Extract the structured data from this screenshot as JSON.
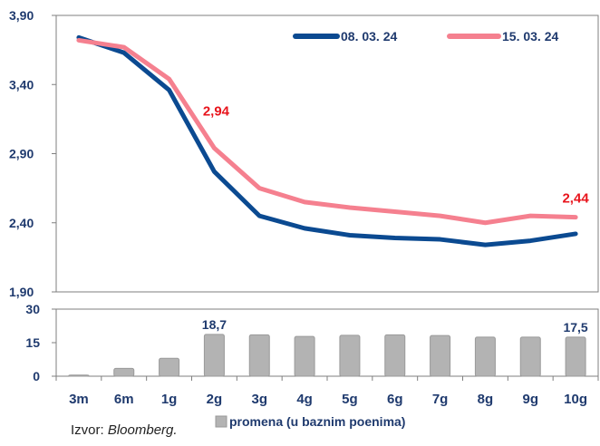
{
  "colors": {
    "series1": "#0b4a91",
    "series2": "#f5808f",
    "bars": "#b3b3b3",
    "bar_edge": "#9a9a9a",
    "axis_text": "#1f3a6e",
    "annotation": "#e8141c",
    "frame": "#7f7f7f"
  },
  "chart_data": [
    {
      "type": "line",
      "categories": [
        "3m",
        "6m",
        "1g",
        "2g",
        "3g",
        "4g",
        "5g",
        "6g",
        "7g",
        "8g",
        "9g",
        "10g"
      ],
      "series": [
        {
          "name": "08. 03. 24",
          "values": [
            3.74,
            3.63,
            3.36,
            2.77,
            2.45,
            2.36,
            2.31,
            2.29,
            2.28,
            2.24,
            2.27,
            2.32
          ],
          "color": "#0b4a91"
        },
        {
          "name": "15. 03. 24",
          "values": [
            3.72,
            3.67,
            3.44,
            2.94,
            2.65,
            2.55,
            2.51,
            2.48,
            2.45,
            2.4,
            2.45,
            2.44
          ],
          "color": "#f5808f"
        }
      ],
      "ylim": [
        1.9,
        3.9
      ],
      "yticks": [
        1.9,
        2.4,
        2.9,
        3.4,
        3.9
      ],
      "ytick_labels": [
        "1,90",
        "2,40",
        "2,90",
        "3,40",
        "3,90"
      ],
      "annotations": [
        {
          "category": "2g",
          "series": "15. 03. 24",
          "text": "2,94"
        },
        {
          "category": "10g",
          "series": "15. 03. 24",
          "text": "2,44"
        }
      ],
      "grid": false,
      "legend": "top-right"
    },
    {
      "type": "bar",
      "categories": [
        "3m",
        "6m",
        "1g",
        "2g",
        "3g",
        "4g",
        "5g",
        "6g",
        "7g",
        "8g",
        "9g",
        "10g"
      ],
      "series": [
        {
          "name": "promena (u baznim poenima)",
          "values": [
            0.5,
            3.5,
            8.0,
            18.7,
            18.5,
            17.8,
            18.3,
            18.5,
            18.2,
            17.5,
            17.5,
            17.5
          ]
        }
      ],
      "ylim": [
        0,
        30
      ],
      "yticks": [
        0,
        15,
        30
      ],
      "ytick_labels": [
        "0",
        "15",
        "30"
      ],
      "annotations": [
        {
          "category": "2g",
          "text": "18,7"
        },
        {
          "category": "10g",
          "text": "17,5"
        }
      ],
      "grid": false,
      "legend": "bottom"
    }
  ],
  "source": {
    "prefix": "Izvor: ",
    "name": "Bloomberg."
  }
}
